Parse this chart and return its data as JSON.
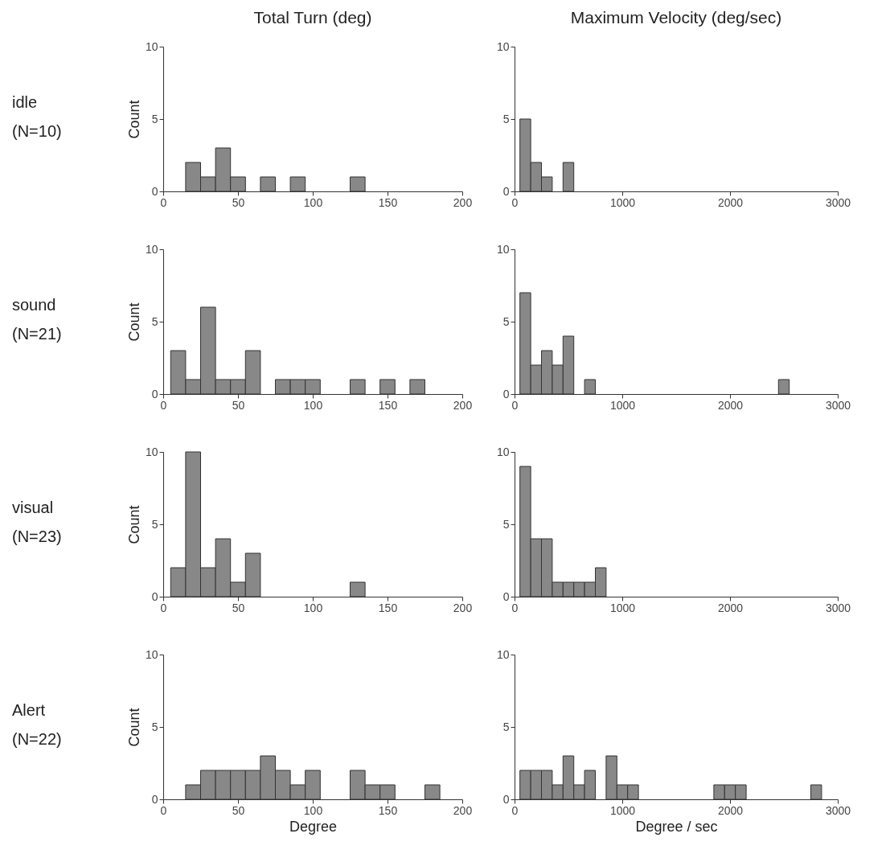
{
  "chart_data": [
    {
      "type": "histogram",
      "title": "Total Turn (deg)",
      "ylabel": "Count",
      "annotations": [
        "idle",
        "(N=10)"
      ],
      "bins": [
        15,
        25,
        35,
        45,
        55,
        65,
        75,
        85,
        95,
        105,
        115,
        125,
        135
      ],
      "values": [
        2,
        1,
        3,
        1,
        0,
        1,
        0,
        1,
        0,
        0,
        0,
        1
      ],
      "color": "#888888",
      "xlim": [
        0,
        200
      ],
      "xticks": [
        0,
        50,
        100,
        150,
        200
      ],
      "ylim": [
        0,
        10
      ],
      "yticks": [
        0,
        5,
        10
      ]
    },
    {
      "type": "histogram",
      "title": "Maximum Velocity (deg/sec)",
      "bins": [
        50,
        150,
        250,
        350,
        450,
        550
      ],
      "values": [
        5,
        2,
        1,
        0,
        2
      ],
      "color": "#888888",
      "xlim": [
        0,
        3000
      ],
      "xticks": [
        0,
        1000,
        2000,
        3000
      ],
      "ylim": [
        0,
        10
      ],
      "yticks": [
        0,
        5,
        10
      ]
    },
    {
      "type": "histogram",
      "ylabel": "Count",
      "annotations": [
        "sound",
        "(N=21)"
      ],
      "bins": [
        5,
        15,
        25,
        35,
        45,
        55,
        65,
        75,
        85,
        95,
        105,
        115,
        125,
        135,
        145,
        155,
        165,
        175
      ],
      "values": [
        3,
        1,
        6,
        1,
        1,
        3,
        0,
        1,
        1,
        1,
        0,
        0,
        1,
        0,
        1,
        0,
        1
      ],
      "color": "#888888",
      "xlim": [
        0,
        200
      ],
      "xticks": [
        0,
        50,
        100,
        150,
        200
      ],
      "ylim": [
        0,
        10
      ],
      "yticks": [
        0,
        5,
        10
      ]
    },
    {
      "type": "histogram",
      "bins": [
        50,
        150,
        250,
        350,
        450,
        550,
        650,
        750,
        850,
        950,
        1050,
        1150,
        1250,
        1350,
        1450,
        1550,
        1650,
        1750,
        1850,
        1950,
        2050,
        2150,
        2250,
        2350,
        2450,
        2550
      ],
      "values": [
        7,
        2,
        3,
        2,
        4,
        0,
        1,
        0,
        0,
        0,
        0,
        0,
        0,
        0,
        0,
        0,
        0,
        0,
        0,
        0,
        0,
        0,
        0,
        0,
        1
      ],
      "color": "#888888",
      "xlim": [
        0,
        3000
      ],
      "xticks": [
        0,
        1000,
        2000,
        3000
      ],
      "ylim": [
        0,
        10
      ],
      "yticks": [
        0,
        5,
        10
      ]
    },
    {
      "type": "histogram",
      "ylabel": "Count",
      "annotations": [
        "visual",
        "(N=23)"
      ],
      "bins": [
        5,
        15,
        25,
        35,
        45,
        55,
        65,
        75,
        85,
        95,
        105,
        115,
        125,
        135
      ],
      "values": [
        2,
        10,
        2,
        4,
        1,
        3,
        0,
        0,
        0,
        0,
        0,
        0,
        1
      ],
      "color": "#888888",
      "xlim": [
        0,
        200
      ],
      "xticks": [
        0,
        50,
        100,
        150,
        200
      ],
      "ylim": [
        0,
        10
      ],
      "yticks": [
        0,
        5,
        10
      ]
    },
    {
      "type": "histogram",
      "bins": [
        50,
        150,
        250,
        350,
        450,
        550,
        650,
        750,
        850
      ],
      "values": [
        9,
        4,
        4,
        1,
        1,
        1,
        1,
        2
      ],
      "color": "#888888",
      "xlim": [
        0,
        3000
      ],
      "xticks": [
        0,
        1000,
        2000,
        3000
      ],
      "ylim": [
        0,
        10
      ],
      "yticks": [
        0,
        5,
        10
      ]
    },
    {
      "type": "histogram",
      "xlabel": "Degree",
      "ylabel": "Count",
      "annotations": [
        "Alert",
        "(N=22)"
      ],
      "bins": [
        15,
        25,
        35,
        45,
        55,
        65,
        75,
        85,
        95,
        105,
        115,
        125,
        135,
        145,
        155,
        165,
        175,
        185
      ],
      "values": [
        1,
        2,
        2,
        2,
        2,
        3,
        2,
        1,
        2,
        0,
        0,
        2,
        1,
        1,
        0,
        0,
        1
      ],
      "color": "#888888",
      "xlim": [
        0,
        200
      ],
      "xticks": [
        0,
        50,
        100,
        150,
        200
      ],
      "ylim": [
        0,
        10
      ],
      "yticks": [
        0,
        5,
        10
      ]
    },
    {
      "type": "histogram",
      "xlabel": "Degree / sec",
      "bins": [
        50,
        150,
        250,
        350,
        450,
        550,
        650,
        750,
        850,
        950,
        1050,
        1150,
        1250,
        1350,
        1450,
        1550,
        1650,
        1750,
        1850,
        1950,
        2050,
        2150,
        2250,
        2350,
        2450,
        2550,
        2650,
        2750,
        2850
      ],
      "values": [
        2,
        2,
        2,
        1,
        3,
        1,
        2,
        0,
        3,
        1,
        1,
        0,
        0,
        0,
        0,
        0,
        0,
        0,
        1,
        1,
        1,
        0,
        0,
        0,
        0,
        0,
        0,
        1
      ],
      "color": "#888888",
      "xlim": [
        0,
        3000
      ],
      "xticks": [
        0,
        1000,
        2000,
        3000
      ],
      "ylim": [
        0,
        10
      ],
      "yticks": [
        0,
        5,
        10
      ]
    }
  ]
}
